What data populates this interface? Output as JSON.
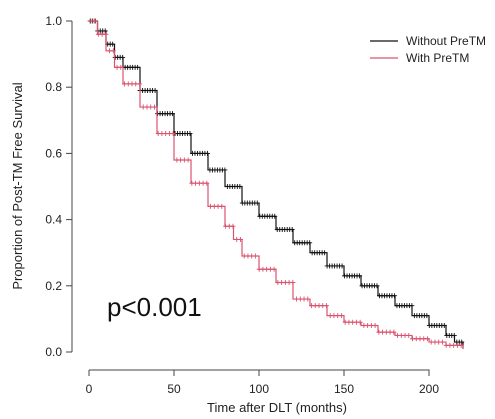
{
  "chart_data": {
    "type": "line",
    "title": "",
    "xlabel": "Time after DLT (months)",
    "ylabel": "Proportion of Post-TM Free Survival",
    "xlim": [
      0,
      225
    ],
    "ylim": [
      0,
      1.0
    ],
    "xticks": [
      "0",
      "50",
      "100",
      "150",
      "200"
    ],
    "xtick_values": [
      0,
      50,
      100,
      150,
      200
    ],
    "yticks": [
      "0.0",
      "0.2",
      "0.4",
      "0.6",
      "0.8",
      "1.0"
    ],
    "ytick_values": [
      0,
      0.2,
      0.4,
      0.6,
      0.8,
      1.0
    ],
    "grid": false,
    "legend_position": "top-right",
    "annotation": "p<0.001",
    "series": [
      {
        "name": "Without PreTM",
        "color": "#111111",
        "x": [
          0,
          5,
          10,
          15,
          20,
          30,
          40,
          50,
          60,
          70,
          80,
          90,
          100,
          110,
          120,
          130,
          140,
          150,
          160,
          170,
          180,
          190,
          200,
          210,
          215,
          220
        ],
        "y": [
          1.0,
          0.97,
          0.93,
          0.89,
          0.86,
          0.79,
          0.72,
          0.66,
          0.6,
          0.55,
          0.5,
          0.45,
          0.41,
          0.37,
          0.33,
          0.3,
          0.26,
          0.23,
          0.2,
          0.17,
          0.14,
          0.11,
          0.08,
          0.05,
          0.03,
          0.01
        ]
      },
      {
        "name": "With PreTM",
        "color": "#d9536e",
        "x": [
          0,
          5,
          10,
          15,
          20,
          30,
          40,
          50,
          60,
          70,
          80,
          85,
          90,
          100,
          110,
          120,
          130,
          140,
          150,
          160,
          170,
          180,
          190,
          200,
          210,
          220
        ],
        "y": [
          1.0,
          0.96,
          0.91,
          0.86,
          0.81,
          0.74,
          0.66,
          0.58,
          0.51,
          0.44,
          0.38,
          0.34,
          0.29,
          0.25,
          0.21,
          0.16,
          0.14,
          0.11,
          0.09,
          0.08,
          0.06,
          0.05,
          0.04,
          0.03,
          0.02,
          0.01
        ]
      }
    ]
  }
}
